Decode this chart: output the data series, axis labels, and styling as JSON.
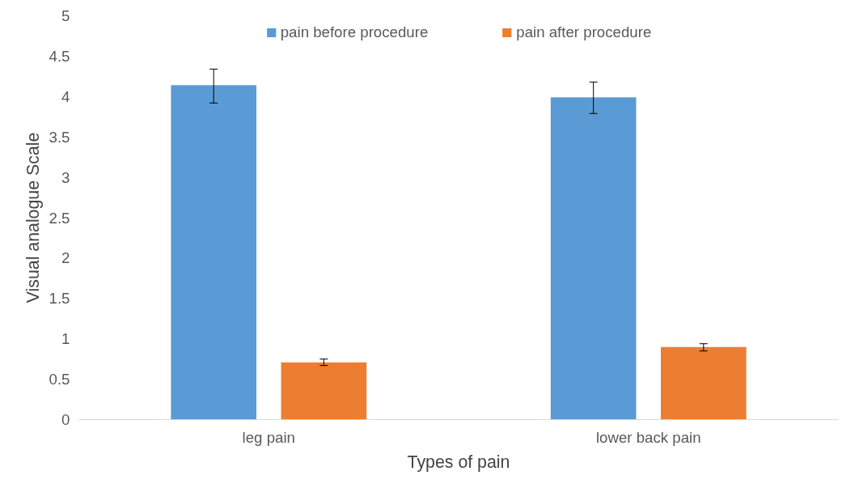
{
  "chart_data": {
    "type": "bar",
    "xlabel": "Types of pain",
    "ylabel": "Visual analogue Scale",
    "categories": [
      "leg pain",
      "lower back pain"
    ],
    "series": [
      {
        "name": "pain before procedure",
        "color": "#5b9bd5",
        "values": [
          4.14,
          3.99
        ],
        "errors": [
          [
            3.92,
            4.34
          ],
          [
            3.79,
            4.18
          ]
        ]
      },
      {
        "name": "pain after procedure",
        "color": "#ed7d31",
        "values": [
          0.71,
          0.9
        ],
        "errors": [
          [
            0.67,
            0.75
          ],
          [
            0.85,
            0.94
          ]
        ]
      }
    ],
    "ylim": [
      0,
      5
    ],
    "yticks": [
      0,
      0.5,
      1,
      1.5,
      2,
      2.5,
      3,
      3.5,
      4,
      4.5,
      5
    ],
    "grid": false,
    "legend": "top"
  }
}
